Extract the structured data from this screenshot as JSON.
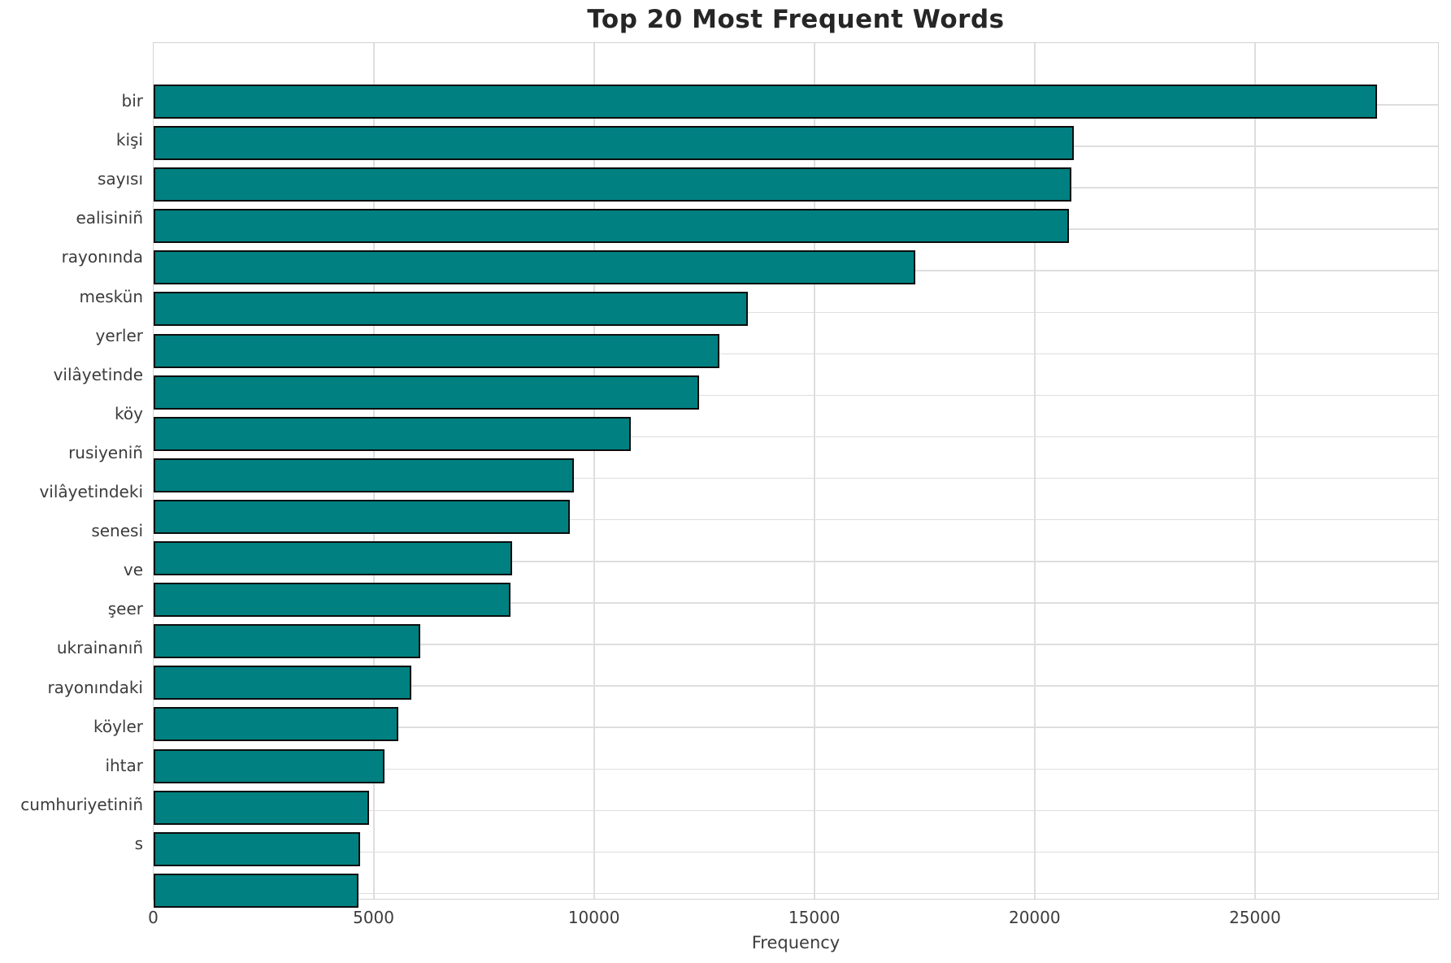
{
  "chart_data": {
    "type": "bar",
    "orientation": "horizontal",
    "title": "Top 20 Most Frequent Words",
    "xlabel": "Frequency",
    "ylabel": "",
    "categories": [
      "bir",
      "kişi",
      "sayısı",
      "ealisiniñ",
      "rayonında",
      "meskün",
      "yerler",
      "vilâyetinde",
      "köy",
      "rusiyeniñ",
      "vilâyetindeki",
      "senesi",
      "ve",
      "şeer",
      "ukrainanıñ",
      "rayonındaki",
      "köyler",
      "ihtar",
      "cumhuriyetiniñ",
      "s"
    ],
    "values": [
      27800,
      20900,
      20850,
      20800,
      17300,
      13500,
      12850,
      12400,
      10850,
      9550,
      9450,
      8150,
      8100,
      6050,
      5850,
      5550,
      5250,
      4900,
      4700,
      4650
    ],
    "xticks": [
      0,
      5000,
      10000,
      15000,
      20000,
      25000
    ],
    "xlim": [
      0,
      29180
    ],
    "grid": true,
    "legend": false,
    "bar_color": "#008080",
    "bar_edge_color": "#0d0d0d",
    "grid_color": "#dedede",
    "background_color": "#ffffff",
    "text_color": "#3c3c3c",
    "title_color": "#262626"
  }
}
